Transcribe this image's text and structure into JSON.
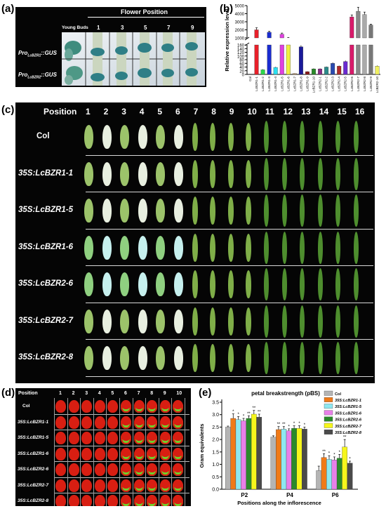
{
  "panel_labels": {
    "a": "(a)",
    "b": "(b)",
    "c": "(c)",
    "d": "(d)",
    "e": "(e)"
  },
  "panel_a": {
    "header": "Flower Position",
    "young_buds": "Young Buds",
    "positions": [
      "1",
      "3",
      "5",
      "7",
      "9"
    ],
    "rows": [
      {
        "pro": "Pro",
        "sub": "LcBZR1",
        "gus": "::GUS"
      },
      {
        "pro": "Pro",
        "sub": "LcBZR2",
        "gus": "::GUS"
      }
    ]
  },
  "panel_c": {
    "position_label": "Position",
    "positions": [
      "1",
      "2",
      "3",
      "4",
      "5",
      "6",
      "7",
      "8",
      "9",
      "10",
      "11",
      "12",
      "13",
      "14",
      "15",
      "16"
    ],
    "lines": [
      "Col",
      "35S:LcBZR1-1",
      "35S:LcBZR1-5",
      "35S:LcBZR1-6",
      "35S:LcBZR2-6",
      "35S:LcBZR2-7",
      "35S:LcBZR2-8"
    ]
  },
  "panel_d": {
    "position_label": "Position",
    "positions": [
      "1",
      "2",
      "3",
      "4",
      "5",
      "6",
      "7",
      "8",
      "9",
      "10"
    ],
    "lines": [
      "Col",
      "35S:LcBZR1-1",
      "35S:LcBZR1-5",
      "35S:LcBZR1-6",
      "35S:LcBZR2-6",
      "35S:LcBZR2-7",
      "35S:LcBZR2-8"
    ]
  },
  "chart_data": [
    {
      "panel": "b",
      "type": "bar",
      "ylabel": "Relative expression level",
      "broken_axis": true,
      "ylim_lower": [
        0,
        160
      ],
      "yticks_lower": [
        0,
        20,
        40,
        60,
        80,
        100,
        120,
        140,
        160
      ],
      "ylim_upper": [
        1000,
        5000
      ],
      "yticks_upper": [
        1000,
        2000,
        3000,
        4000,
        5000
      ],
      "categories": [
        "Col",
        "LcBZR1-1",
        "LcBZR1-2",
        "LcBZR1-3",
        "LcBZR1-4",
        "LcBZR1-5",
        "LcBZR1-6",
        "LcBZR1-7",
        "LcBZR1-8",
        "LcBZR1-9",
        "LcBZR1-10",
        "LcBZR2-1",
        "LcBZR2-2",
        "LcBZR2-3",
        "LcBZR2-4",
        "LcBZR2-5",
        "LcBZR2-6",
        "LcBZR2-7",
        "LcBZR2-8",
        "LcBZR2-9",
        "LcBZR2-10"
      ],
      "values": [
        0,
        2000,
        25,
        1700,
        38,
        1450,
        1000,
        5,
        150,
        15,
        30,
        30,
        40,
        60,
        45,
        70,
        3600,
        4300,
        3900,
        2600,
        45
      ],
      "errors": [
        0,
        250,
        3,
        120,
        3,
        150,
        60,
        1,
        8,
        2,
        3,
        3,
        3,
        5,
        3,
        5,
        250,
        500,
        300,
        100,
        3
      ],
      "colors": [
        "#555555",
        "#e8202a",
        "#2ad84a",
        "#1a2cd0",
        "#2ce0f0",
        "#e040e0",
        "#f0f040",
        "#c8a070",
        "#1a1a9a",
        "#8a1a1a",
        "#2a8a2a",
        "#8a2a8a",
        "#2a8a8a",
        "#2a4ab0",
        "#b02a2a",
        "#6a2ad0",
        "#d81a6a",
        "#888888",
        "#aaaaaa",
        "#777777",
        "#f0f060"
      ]
    },
    {
      "panel": "e",
      "type": "bar",
      "title": "petal breakstrength (pBS)",
      "xlabel": "Positions along the inflorescence",
      "ylabel": "Gram equivalents",
      "ylim": [
        0,
        3.5
      ],
      "yticks": [
        "0.0",
        "0.5",
        "1.0",
        "1.5",
        "2.0",
        "2.5",
        "3.0",
        "3.5"
      ],
      "categories": [
        "P2",
        "P4",
        "P6"
      ],
      "series": [
        {
          "name": "Col",
          "color": "#b4b4b4",
          "values": [
            2.5,
            2.1,
            0.75
          ],
          "errors": [
            0.04,
            0.05,
            0.18
          ],
          "sig": [
            "",
            "",
            ""
          ]
        },
        {
          "name": "35S:LcBZR1-1",
          "color": "#f07a18",
          "values": [
            2.85,
            2.4,
            1.28
          ],
          "errors": [
            0.18,
            0.12,
            0.15
          ],
          "sig": [
            "*",
            "**",
            "**"
          ]
        },
        {
          "name": "35S:LcBZR1-5",
          "color": "#8ee8f0",
          "values": [
            2.8,
            2.42,
            1.2
          ],
          "errors": [
            0.12,
            0.1,
            0.15
          ],
          "sig": [
            "*",
            "**",
            "*"
          ]
        },
        {
          "name": "35S:LcBZR1-6",
          "color": "#e880e8",
          "values": [
            2.75,
            2.35,
            1.18
          ],
          "errors": [
            0.1,
            0.08,
            0.12
          ],
          "sig": [
            "*",
            "*",
            "*"
          ]
        },
        {
          "name": "35S:LcBZR2-6",
          "color": "#2a8a2a",
          "values": [
            2.85,
            2.45,
            1.25
          ],
          "errors": [
            0.1,
            0.1,
            0.15
          ],
          "sig": [
            "**",
            "*",
            "*"
          ]
        },
        {
          "name": "35S:LcBZR2-7",
          "color": "#f6f61c",
          "values": [
            3.02,
            2.45,
            1.7
          ],
          "errors": [
            0.15,
            0.1,
            0.3
          ],
          "sig": [
            "**",
            "*",
            "**"
          ]
        },
        {
          "name": "35S:LcBZR2-8",
          "color": "#4a4a4a",
          "values": [
            2.9,
            2.42,
            1.05
          ],
          "errors": [
            0.12,
            0.08,
            0.08
          ],
          "sig": [
            "**",
            "*",
            "*"
          ]
        }
      ]
    }
  ]
}
